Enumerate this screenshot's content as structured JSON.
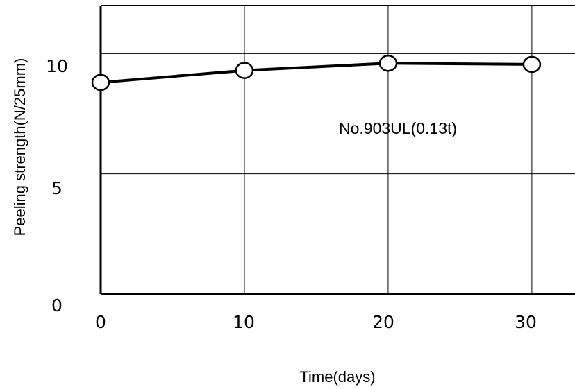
{
  "chart_data": {
    "type": "line",
    "title": "",
    "xlabel": "Time(days)",
    "ylabel": "Peeling strength(N/25mm)",
    "xlim": [
      0,
      33
    ],
    "ylim": [
      0,
      12
    ],
    "x_ticks": [
      "0",
      "10",
      "20",
      "30"
    ],
    "y_ticks": [
      "0",
      "5",
      "10"
    ],
    "grid": true,
    "legend": "none",
    "annotations": [
      "No.903UL(0.13t)"
    ],
    "series": [
      {
        "x": [
          0,
          10,
          20,
          30
        ],
        "values": [
          8.8,
          9.3,
          9.6,
          9.55
        ]
      }
    ],
    "colors": {
      "line": "#000000",
      "marker_fill": "#ffffff",
      "grid": "#000000",
      "background": "#ffffff"
    }
  }
}
